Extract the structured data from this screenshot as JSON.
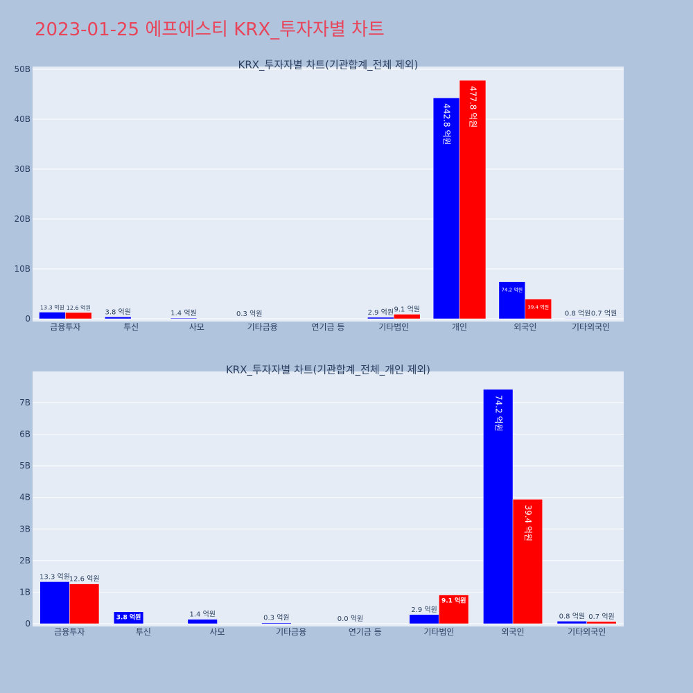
{
  "page": {
    "title": "2023-01-25 에프에스티 KRX_투자자별 차트"
  },
  "colors": {
    "buy": "#0000ff",
    "sell": "#ff0000",
    "plot_bg": "#e5ecf6",
    "page_bg": "#b0c4de",
    "title": "#e8455a"
  },
  "chart_data": [
    {
      "type": "bar",
      "title": "KRX_투자자별 차트(기관합계_전체 제외)",
      "categories": [
        "금융투자",
        "투신",
        "사모",
        "기타금융",
        "연기금 등",
        "기타법인",
        "개인",
        "외국인",
        "기타외국인"
      ],
      "series": [
        {
          "values": [
            1330000000,
            380000000,
            140000000,
            30000000,
            0,
            290000000,
            44280000000,
            7420000000,
            80000000
          ],
          "labels": [
            "13.3 억원",
            "3.8 억원",
            "1.4 억원",
            "0.3 억원",
            "",
            "2.9 억원",
            "442.8 억원",
            "74.2 억원",
            "0.8 억원"
          ]
        },
        {
          "values": [
            1260000000,
            0,
            0,
            0,
            0,
            910000000,
            47780000000,
            3940000000,
            70000000
          ],
          "labels": [
            "12.6 억원",
            "",
            "",
            "",
            "",
            "9.1 억원",
            "477.8 억원",
            "39.4 억원",
            "0.7 억원"
          ]
        }
      ],
      "ylim": [
        0,
        50000000000
      ],
      "yticks": [
        0,
        10000000000,
        20000000000,
        30000000000,
        40000000000,
        50000000000
      ],
      "ytick_labels": [
        "0",
        "10B",
        "20B",
        "30B",
        "40B",
        "50B"
      ],
      "grid": true
    },
    {
      "type": "bar",
      "title": "KRX_투자자별 차트(기관합계_전체_개인 제외)",
      "categories": [
        "금융투자",
        "투신",
        "사모",
        "기타금융",
        "연기금 등",
        "기타법인",
        "외국인",
        "기타외국인"
      ],
      "series": [
        {
          "values": [
            1330000000,
            380000000,
            140000000,
            30000000,
            0,
            290000000,
            7420000000,
            80000000
          ],
          "labels": [
            "13.3 억원",
            "3.8 억원",
            "1.4 억원",
            "0.3 억원",
            "0.0 억원",
            "2.9 억원",
            "74.2 억원",
            "0.8 억원"
          ]
        },
        {
          "values": [
            1260000000,
            0,
            0,
            0,
            0,
            910000000,
            3940000000,
            70000000
          ],
          "labels": [
            "12.6 억원",
            "",
            "",
            "",
            "",
            "9.1 억원",
            "39.4 억원",
            "0.7 억원"
          ]
        }
      ],
      "ylim": [
        0,
        7900000000
      ],
      "yticks": [
        0,
        1000000000,
        2000000000,
        3000000000,
        4000000000,
        5000000000,
        6000000000,
        7000000000
      ],
      "ytick_labels": [
        "0",
        "1B",
        "2B",
        "3B",
        "4B",
        "5B",
        "6B",
        "7B"
      ],
      "grid": true
    }
  ]
}
